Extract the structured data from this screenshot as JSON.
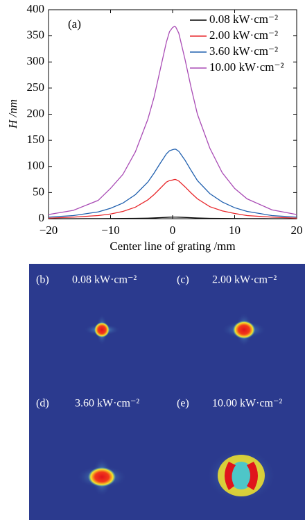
{
  "chart_data": {
    "type": "line",
    "panel_label": "(a)",
    "x_label": "Center line of grating /mm",
    "y_label": "H /nm",
    "x": [
      -20,
      -16,
      -12,
      -10,
      -8,
      -6,
      -4,
      -3,
      -2,
      -1,
      -0.5,
      0,
      0.3,
      0.5,
      1,
      2,
      3,
      4,
      6,
      8,
      10,
      12,
      16,
      20
    ],
    "series": [
      {
        "name": "0.08 kW·cm⁻²",
        "color": "#000000",
        "values": [
          0,
          0,
          0.2,
          0.3,
          0.4,
          0.6,
          1,
          1.4,
          2,
          2.6,
          2.9,
          3,
          3,
          3,
          2.9,
          2.4,
          1.8,
          1.3,
          0.7,
          0.4,
          0.3,
          0.2,
          0,
          0
        ]
      },
      {
        "name": "2.00 kW·cm⁻²",
        "color": "#e8262a",
        "values": [
          1,
          3,
          6,
          9,
          14,
          22,
          36,
          46,
          58,
          70,
          73,
          74,
          75,
          75,
          72,
          61,
          49,
          38,
          23,
          15,
          10,
          6,
          3,
          1
        ]
      },
      {
        "name": "3.60 kW·cm⁻²",
        "color": "#1f5fae",
        "values": [
          3,
          6,
          13,
          20,
          30,
          46,
          70,
          87,
          106,
          124,
          130,
          132,
          133,
          133,
          129,
          112,
          92,
          73,
          48,
          32,
          21,
          14,
          6,
          3
        ]
      },
      {
        "name": "10.00 kW·cm⁻²",
        "color": "#a94bb5",
        "values": [
          8,
          16,
          35,
          58,
          85,
          128,
          190,
          232,
          285,
          338,
          358,
          366,
          368,
          367,
          355,
          305,
          250,
          200,
          135,
          88,
          58,
          38,
          17,
          8
        ]
      }
    ],
    "xlim": [
      -20,
      20
    ],
    "xticks": [
      {
        "value": -20,
        "label": "−20"
      },
      {
        "value": -10,
        "label": "−10"
      },
      0,
      10,
      20
    ],
    "ylim": [
      0,
      400
    ],
    "yticks": [
      0,
      50,
      100,
      150,
      200,
      250,
      300,
      350,
      400
    ],
    "grid": false,
    "legend": "upper right"
  },
  "panels": [
    {
      "label": "(b)",
      "intensity": "0.08 kW·cm⁻²"
    },
    {
      "label": "(c)",
      "intensity": "2.00 kW·cm⁻²"
    },
    {
      "label": "(d)",
      "intensity": "3.60 kW·cm⁻²"
    },
    {
      "label": "(e)",
      "intensity": "10.00 kW·cm⁻²"
    }
  ]
}
